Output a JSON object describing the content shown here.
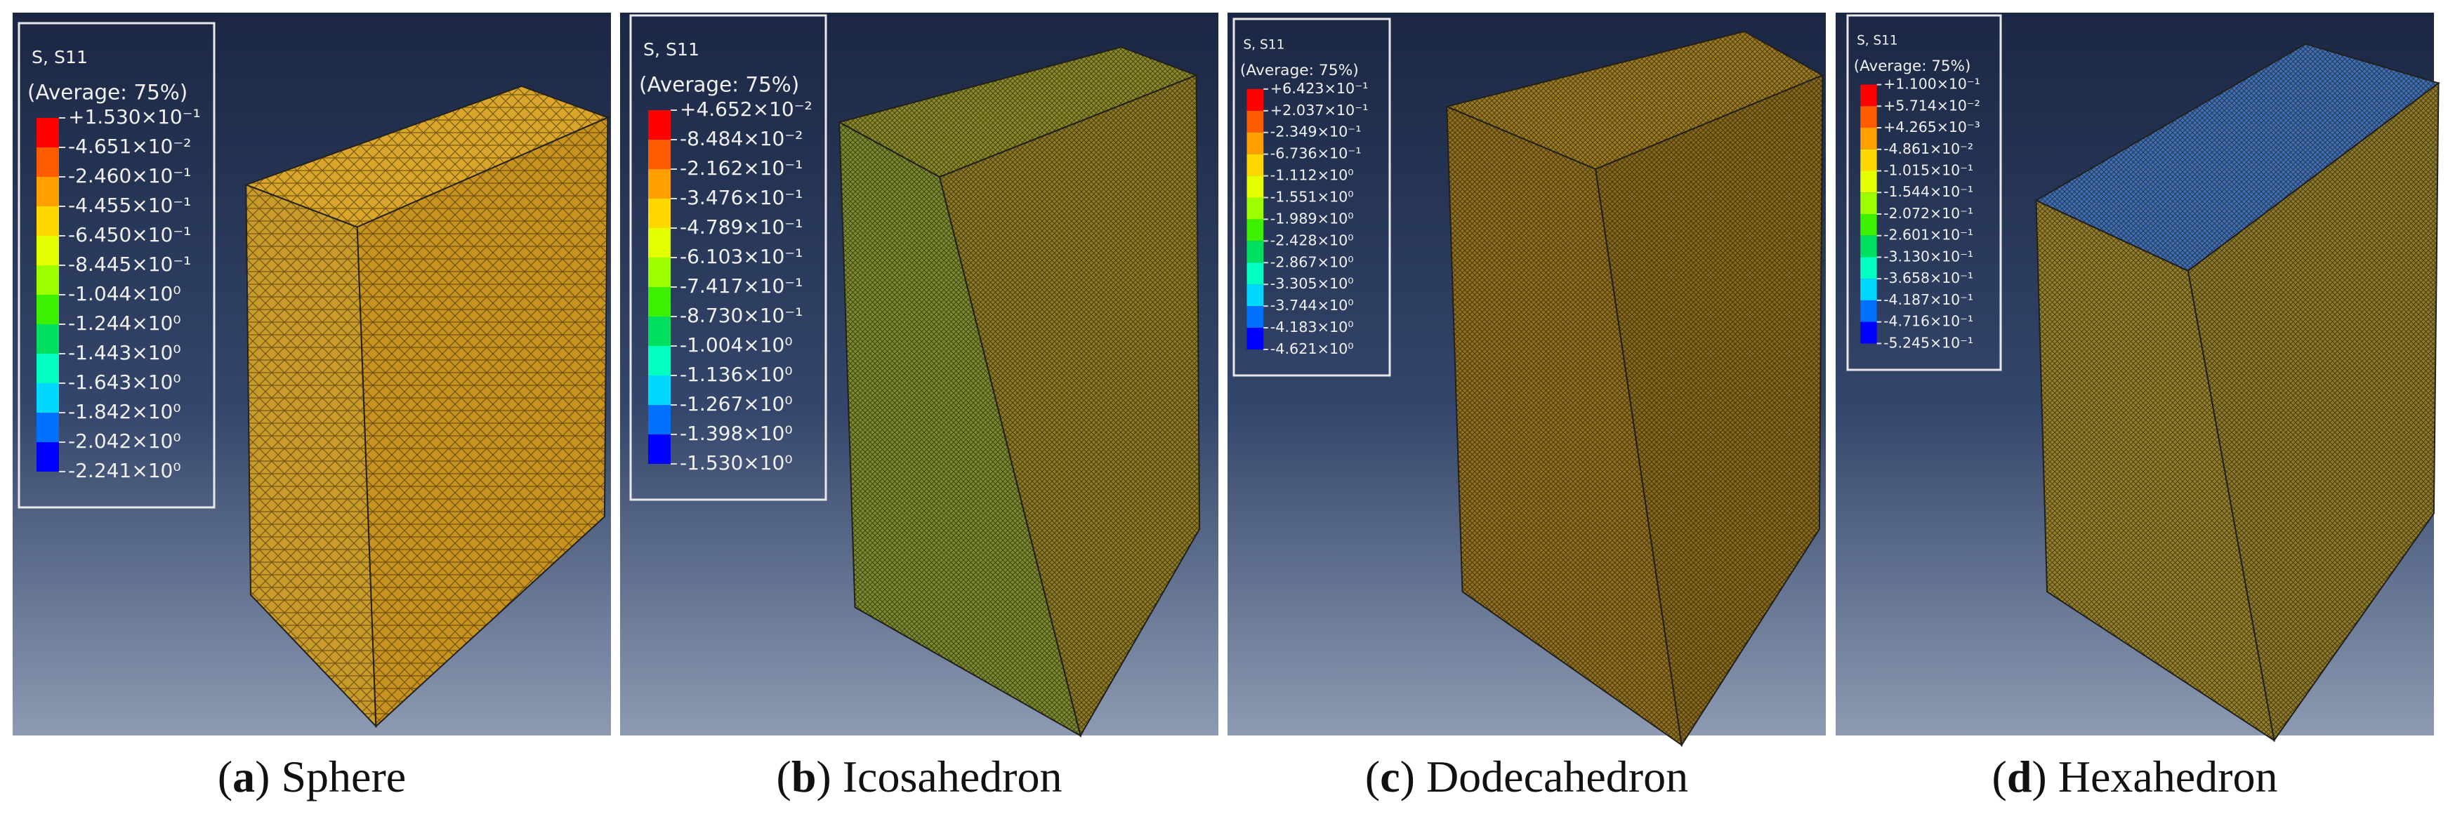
{
  "panels": [
    {
      "legend": {
        "title": "S, S11",
        "subtitle": "(Average: 75%)",
        "labels": [
          "+1.530×10⁻¹",
          "-4.651×10⁻²",
          "-2.460×10⁻¹",
          "-4.455×10⁻¹",
          "-6.450×10⁻¹",
          "-8.445×10⁻¹",
          "-1.044×10⁰",
          "-1.244×10⁰",
          "-1.443×10⁰",
          "-1.643×10⁰",
          "-1.842×10⁰",
          "-2.042×10⁰",
          "-2.241×10⁰"
        ]
      },
      "caption": {
        "open": "(",
        "letter": "a",
        "close": ")",
        "name": " Sphere"
      }
    },
    {
      "legend": {
        "title": "S, S11",
        "subtitle": "(Average: 75%)",
        "labels": [
          "+4.652×10⁻²",
          "-8.484×10⁻²",
          "-2.162×10⁻¹",
          "-3.476×10⁻¹",
          "-4.789×10⁻¹",
          "-6.103×10⁻¹",
          "-7.417×10⁻¹",
          "-8.730×10⁻¹",
          "-1.004×10⁰",
          "-1.136×10⁰",
          "-1.267×10⁰",
          "-1.398×10⁰",
          "-1.530×10⁰"
        ]
      },
      "caption": {
        "open": "(",
        "letter": "b",
        "close": ")",
        "name": " Icosahedron"
      }
    },
    {
      "legend": {
        "title": "S, S11",
        "subtitle": "(Average: 75%)",
        "labels": [
          "+6.423×10⁻¹",
          "+2.037×10⁻¹",
          "-2.349×10⁻¹",
          "-6.736×10⁻¹",
          "-1.112×10⁰",
          "-1.551×10⁰",
          "-1.989×10⁰",
          "-2.428×10⁰",
          "-2.867×10⁰",
          "-3.305×10⁰",
          "-3.744×10⁰",
          "-4.183×10⁰",
          "-4.621×10⁰"
        ]
      },
      "caption": {
        "open": "(",
        "letter": "c",
        "close": ")",
        "name": " Dodecahedron"
      }
    },
    {
      "legend": {
        "title": "S, S11",
        "subtitle": "(Average: 75%)",
        "labels": [
          "+1.100×10⁻¹",
          "+5.714×10⁻²",
          "+4.265×10⁻³",
          "-4.861×10⁻²",
          "-1.015×10⁻¹",
          "-1.544×10⁻¹",
          "-2.072×10⁻¹",
          "-2.601×10⁻¹",
          "-3.130×10⁻¹",
          "-3.658×10⁻¹",
          "-4.187×10⁻¹",
          "-4.716×10⁻¹",
          "-5.245×10⁻¹"
        ]
      },
      "caption": {
        "open": "(",
        "letter": "d",
        "close": ")",
        "name": " Hexahedron"
      }
    }
  ]
}
